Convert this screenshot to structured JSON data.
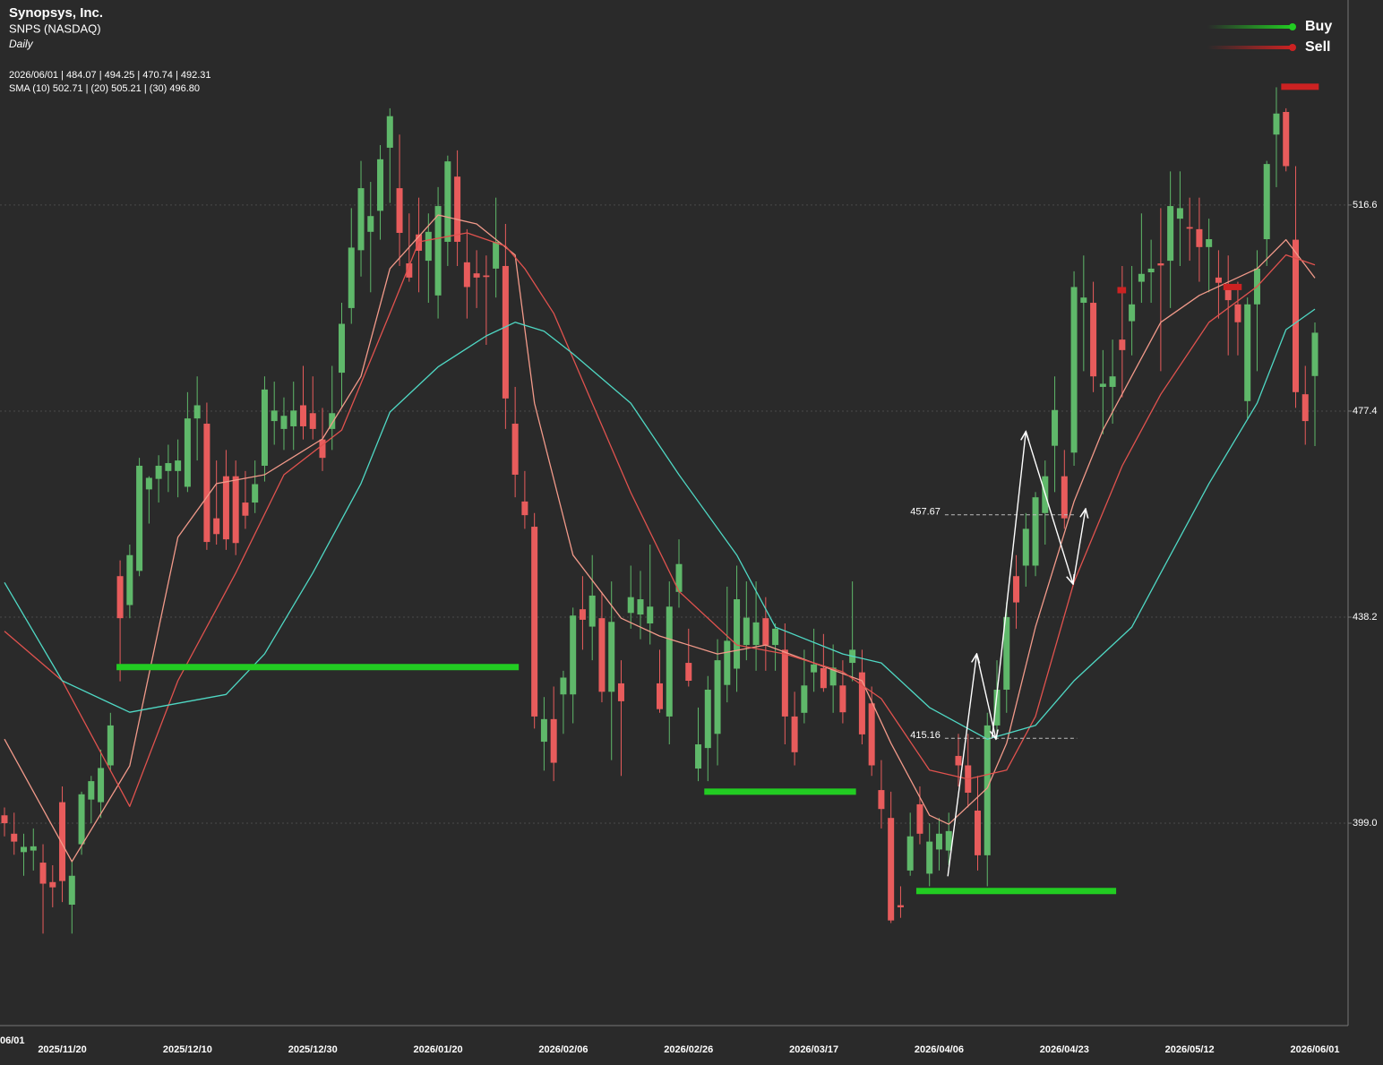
{
  "chart_data": {
    "type": "candlestick",
    "title": "Synopsys, Inc.",
    "subtitle": "SNPS (NASDAQ)",
    "interval": "Daily",
    "ohlc_readout": "2026/06/01 | 484.07 | 494.25 | 470.74 | 492.31",
    "sma_readout": "SMA (10) 502.71 | (20) 505.21 | (30) 496.80",
    "edge_label": "06/01",
    "ylim": [
      360.5,
      555.6
    ],
    "yticks": [
      {
        "value": 399,
        "label": "399.0"
      },
      438.2,
      477.4,
      516.6
    ],
    "grid": true,
    "up_color": "#5fb86a",
    "down_color": "#e85c5c",
    "categories": [
      null,
      null,
      null,
      null,
      null,
      null,
      "2025/11/20",
      null,
      null,
      null,
      null,
      null,
      null,
      null,
      null,
      null,
      null,
      null,
      null,
      "2025/12/10",
      null,
      null,
      null,
      null,
      null,
      null,
      null,
      null,
      null,
      null,
      null,
      null,
      "2025/12/30",
      null,
      null,
      null,
      null,
      null,
      null,
      null,
      null,
      null,
      null,
      null,
      null,
      "2026/01/20",
      null,
      null,
      null,
      null,
      null,
      null,
      null,
      null,
      null,
      null,
      null,
      null,
      "2026/02/06",
      null,
      null,
      null,
      null,
      null,
      null,
      null,
      null,
      null,
      null,
      null,
      null,
      "2026/02/26",
      null,
      null,
      null,
      null,
      null,
      null,
      null,
      null,
      null,
      null,
      null,
      null,
      "2026/03/17",
      null,
      null,
      null,
      null,
      null,
      null,
      null,
      null,
      null,
      null,
      null,
      null,
      "2026/04/06",
      null,
      null,
      null,
      null,
      null,
      null,
      null,
      null,
      null,
      null,
      null,
      null,
      "2026/04/23",
      null,
      null,
      null,
      null,
      null,
      null,
      null,
      null,
      null,
      null,
      null,
      null,
      "2026/05/12",
      null,
      null,
      null,
      null,
      null,
      null,
      null,
      null,
      null,
      null,
      null,
      null,
      "2026/06/01"
    ],
    "ohlc": [
      [
        400.5,
        402,
        396.5,
        399
      ],
      [
        397,
        401,
        393,
        395.5
      ],
      [
        393.5,
        397,
        389,
        394.5
      ],
      [
        393.8,
        398,
        390,
        394.6
      ],
      [
        391.5,
        395,
        378,
        387.5
      ],
      [
        387.8,
        391,
        383,
        386.8
      ],
      [
        403,
        406,
        384,
        388
      ],
      [
        383.5,
        392,
        378,
        389
      ],
      [
        395,
        405,
        393,
        404.5
      ],
      [
        403.5,
        408,
        399,
        407
      ],
      [
        403,
        413,
        400,
        409.5
      ],
      [
        410,
        420,
        409,
        417.6
      ],
      [
        446,
        449,
        426,
        438
      ],
      [
        440.5,
        452,
        438,
        450
      ],
      [
        447,
        468.5,
        446,
        467
      ],
      [
        462.5,
        465,
        456,
        464.7
      ],
      [
        464.5,
        469,
        460,
        467
      ],
      [
        466,
        471,
        462,
        467.5
      ],
      [
        466,
        472,
        461,
        468
      ],
      [
        463,
        481,
        462,
        476
      ],
      [
        476,
        484,
        468,
        478.5
      ],
      [
        475,
        479,
        451,
        452.5
      ],
      [
        457,
        468,
        452,
        454
      ],
      [
        465,
        470,
        451,
        453
      ],
      [
        465,
        468,
        450,
        452.3
      ],
      [
        460,
        466,
        455,
        457.5
      ],
      [
        460,
        468,
        458,
        463.5
      ],
      [
        467,
        484,
        464,
        481.5
      ],
      [
        475.5,
        483,
        471,
        477.5
      ],
      [
        474,
        480,
        470,
        476.5
      ],
      [
        474.5,
        483,
        470,
        477.5
      ],
      [
        478.5,
        486,
        472,
        474.5
      ],
      [
        477,
        484,
        472,
        474
      ],
      [
        472,
        478,
        466,
        468.5
      ],
      [
        474,
        486,
        470,
        477
      ],
      [
        484.7,
        498,
        478,
        494
      ],
      [
        497,
        516,
        494,
        508.5
      ],
      [
        508,
        525,
        503,
        519.8
      ],
      [
        511.5,
        521,
        500,
        514.5
      ],
      [
        515.5,
        528,
        510,
        525.3
      ],
      [
        527.5,
        535,
        517,
        533.5
      ],
      [
        519.8,
        530,
        505,
        511.3
      ],
      [
        505.5,
        515,
        502,
        502.8
      ],
      [
        511,
        518,
        500,
        507.9
      ],
      [
        506,
        515,
        498,
        511.5
      ],
      [
        499.4,
        520,
        495,
        516.4
      ],
      [
        509.6,
        526,
        505,
        524.9
      ],
      [
        522,
        527,
        505,
        509.6
      ],
      [
        505.7,
        512,
        495,
        501
      ],
      [
        503.6,
        508,
        497,
        502.8
      ],
      [
        503.2,
        507,
        490,
        502.9
      ],
      [
        504.5,
        518,
        499,
        509.6
      ],
      [
        505,
        513,
        474,
        479.8
      ],
      [
        475,
        482,
        461,
        465.3
      ],
      [
        460.2,
        466,
        455,
        457.6
      ],
      [
        455.4,
        458,
        417,
        419.3
      ],
      [
        414.5,
        423,
        409,
        418.8
      ],
      [
        418.8,
        425,
        407,
        410.5
      ],
      [
        423.5,
        428,
        416,
        426.7
      ],
      [
        423.5,
        440,
        418,
        438.5
      ],
      [
        439.7,
        446,
        432,
        437.7
      ],
      [
        436.4,
        450,
        430,
        442.3
      ],
      [
        438,
        443,
        422,
        424
      ],
      [
        424,
        445,
        411,
        437.3
      ],
      [
        425.6,
        430,
        408,
        422.2
      ],
      [
        439,
        448,
        436,
        442
      ],
      [
        438.7,
        447,
        434,
        441.6
      ],
      [
        437,
        452,
        433,
        440.2
      ],
      [
        425.6,
        432,
        420,
        420.7
      ],
      [
        419.3,
        445,
        414,
        440.2
      ],
      [
        443,
        453,
        440,
        448.3
      ],
      [
        429.5,
        436,
        425,
        426.1
      ],
      [
        409.4,
        421,
        407,
        414
      ],
      [
        413.3,
        427,
        407,
        424.4
      ],
      [
        416,
        434,
        410,
        430
      ],
      [
        425.3,
        444,
        422,
        433.7
      ],
      [
        428.4,
        448,
        424,
        441.6
      ],
      [
        432.9,
        445,
        430,
        438.1
      ],
      [
        432.9,
        445,
        428,
        437.2
      ],
      [
        438,
        442,
        428,
        432.9
      ],
      [
        432.9,
        437,
        428,
        436
      ],
      [
        432,
        437,
        414,
        419.3
      ],
      [
        419.3,
        424,
        410,
        412.5
      ],
      [
        420,
        432,
        418,
        425.2
      ],
      [
        427.7,
        436,
        424,
        429.2
      ],
      [
        428.5,
        435,
        424,
        424.7
      ],
      [
        425.2,
        433,
        420,
        428.6
      ],
      [
        425.2,
        430,
        418,
        420.1
      ],
      [
        429.5,
        445,
        426,
        432
      ],
      [
        427.7,
        432,
        414,
        415.9
      ],
      [
        421.8,
        425,
        408,
        410
      ],
      [
        405.3,
        411,
        398,
        401.7
      ],
      [
        400,
        405,
        380,
        380.5
      ],
      [
        383.4,
        387,
        381,
        383
      ],
      [
        390,
        401,
        389,
        396.5
      ],
      [
        402.6,
        406,
        395,
        397
      ],
      [
        389.4,
        399,
        387,
        395.5
      ],
      [
        394,
        400,
        390,
        397
      ],
      [
        393.8,
        401,
        391,
        397.5
      ],
      [
        411.8,
        416,
        406,
        410
      ],
      [
        410,
        416,
        402,
        404.8
      ],
      [
        401.4,
        408,
        390,
        392.9
      ],
      [
        392.9,
        420,
        387,
        417.6
      ],
      [
        417.6,
        430,
        415,
        424.4
      ],
      [
        424.4,
        441,
        420,
        438.2
      ],
      [
        446,
        450,
        436,
        441
      ],
      [
        448,
        458,
        444,
        455
      ],
      [
        448,
        462,
        446,
        461
      ],
      [
        458,
        468,
        452,
        465
      ],
      [
        470.8,
        484,
        462,
        477.6
      ],
      [
        465,
        470,
        455,
        457
      ],
      [
        469.5,
        504,
        467,
        501
      ],
      [
        498,
        507,
        485,
        499
      ],
      [
        498,
        502,
        481,
        484
      ],
      [
        482,
        489,
        473,
        482.6
      ],
      [
        482,
        491,
        475,
        484
      ],
      [
        491,
        505,
        480,
        489
      ],
      [
        494.5,
        505,
        488,
        497.7
      ],
      [
        502,
        515,
        498,
        503.5
      ],
      [
        503.8,
        510,
        498,
        504.5
      ],
      [
        505.5,
        516,
        485,
        505.1
      ],
      [
        506,
        523,
        497,
        516.4
      ],
      [
        514,
        523,
        505,
        516
      ],
      [
        512.4,
        518,
        506,
        512.1
      ],
      [
        512,
        518,
        502,
        508.6
      ],
      [
        508.6,
        514,
        500,
        510.1
      ],
      [
        502.8,
        508,
        495,
        501.8
      ],
      [
        501,
        507,
        488,
        498.5
      ],
      [
        497.7,
        502,
        488,
        494.3
      ],
      [
        479.3,
        499,
        476,
        497.7
      ],
      [
        497.7,
        508,
        485,
        504.5
      ],
      [
        510.1,
        525,
        505,
        524.4
      ],
      [
        530,
        539,
        520,
        534
      ],
      [
        534.3,
        535,
        523,
        524
      ],
      [
        510,
        524,
        478,
        481
      ],
      [
        480.6,
        486,
        471,
        475.5
      ],
      [
        484.07,
        494.25,
        470.74,
        492.31
      ]
    ],
    "sma": [
      {
        "color": "#f29a8a",
        "x": [
          0,
          7,
          13,
          18,
          22,
          27,
          33,
          37,
          40,
          45,
          49,
          53,
          55,
          59,
          64,
          68,
          74,
          79,
          84,
          89,
          92,
          96,
          98,
          102,
          104,
          107,
          111,
          114,
          118,
          120,
          124,
          130,
          133,
          136
        ],
        "values": [
          415.0,
          391.7,
          409.9,
          453.4,
          463.6,
          465.3,
          472.1,
          484.0,
          504.5,
          514.7,
          513.0,
          507.1,
          478.9,
          450.0,
          438.0,
          434.6,
          431.2,
          432.9,
          429.5,
          426.1,
          414.2,
          400.5,
          398.8,
          405.7,
          414.2,
          436.3,
          460.2,
          473.8,
          487.5,
          494.3,
          499.4,
          504.5,
          510.0,
          502.71
        ]
      },
      {
        "color": "#e0524e",
        "x": [
          0,
          6,
          13,
          18,
          24,
          29,
          35,
          40,
          43,
          48,
          52,
          54,
          57,
          61,
          65,
          70,
          76,
          81,
          87,
          91,
          96,
          100,
          104,
          107,
          111,
          116,
          120,
          125,
          130,
          133,
          136
        ],
        "values": [
          435.5,
          426.1,
          402.2,
          426.1,
          446.6,
          465.3,
          473.8,
          496.0,
          509.6,
          511.3,
          508.8,
          504.5,
          496.0,
          478.9,
          461.9,
          443.1,
          432.9,
          431.2,
          427.8,
          422.7,
          409.1,
          407.4,
          409.1,
          419.3,
          444.9,
          467.0,
          480.6,
          494.3,
          501.1,
          507.1,
          505.21
        ]
      },
      {
        "color": "#4fd8c4",
        "x": [
          0,
          6,
          13,
          18,
          23,
          27,
          32,
          37,
          40,
          45,
          50,
          53,
          56,
          59,
          65,
          70,
          76,
          80,
          87,
          91,
          96,
          102,
          107,
          111,
          117,
          120,
          125,
          130,
          133,
          136
        ],
        "values": [
          444.8,
          426.1,
          420.1,
          421.8,
          423.5,
          431.2,
          446.6,
          463.6,
          477.2,
          485.8,
          491.7,
          494.3,
          492.6,
          488.3,
          478.9,
          465.3,
          450.0,
          436.3,
          431.2,
          429.5,
          421.0,
          415.0,
          417.6,
          426.1,
          436.3,
          446.6,
          463.6,
          478.9,
          492.9,
          496.8
        ]
      }
    ],
    "support_lines": [
      {
        "from": 12,
        "to": 53,
        "value": 428.7
      },
      {
        "from": 73,
        "to": 88,
        "value": 405.0
      },
      {
        "from": 95,
        "to": 115,
        "value": 386.1
      }
    ],
    "sell_marks": [
      {
        "from": 132.5,
        "to": 136.4,
        "value": 539.1
      },
      {
        "from": 115.5,
        "to": 116.4,
        "value": 500.4
      },
      {
        "from": 126.5,
        "to": 128.4,
        "value": 501.0
      }
    ],
    "price_levels": [
      {
        "from": 97.6,
        "to": 111.1,
        "value": 457.67
      },
      {
        "from": 97.6,
        "to": 111.3,
        "value": 415.16
      }
    ],
    "zigzags": [
      {
        "x": [
          97.9,
          100.9,
          102.9
        ],
        "values": [
          388.9,
          431.2,
          415.0
        ]
      },
      {
        "x": [
          102.5,
          106.0,
          110.9,
          112.2
        ],
        "values": [
          415.3,
          473.5,
          444.5,
          458.8
        ]
      }
    ],
    "legend": [
      {
        "name": "Buy",
        "color": "#22cc22"
      },
      {
        "name": "Sell",
        "color": "#cc2222"
      }
    ]
  }
}
